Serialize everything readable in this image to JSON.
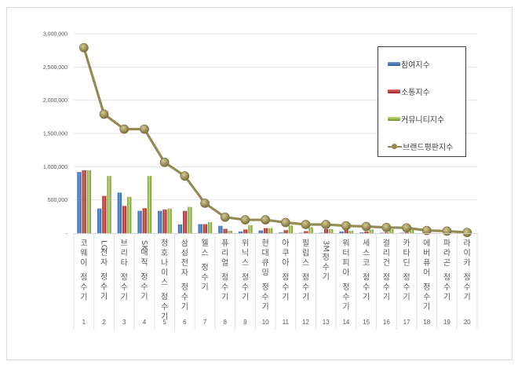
{
  "chart_data": {
    "type": "bar",
    "combo": "bar+line",
    "title": "",
    "xlabel": "",
    "ylabel": "",
    "ylim": [
      0,
      3000000
    ],
    "yticks": [
      "-",
      "500,000",
      "1,000,000",
      "1,500,000",
      "2,000,000",
      "2,500,000",
      "3,000,000"
    ],
    "grid": true,
    "legend_position": "upper-right-inside",
    "ranks": [
      "1",
      "2",
      "3",
      "4",
      "5",
      "6",
      "7",
      "8",
      "9",
      "10",
      "11",
      "12",
      "13",
      "14",
      "15",
      "16",
      "17",
      "18",
      "19",
      "20"
    ],
    "categories": [
      "코웨이 정수기",
      "LG전자 정수기",
      "브리타 정수기",
      "SK매직 정수기",
      "청호나이스 정수기",
      "삼성전자 정수기",
      "웰스 정수기",
      "퓨리얼 정수기",
      "위닉스 정수기",
      "현대큐밍 정수기",
      "아쿠아 정수기",
      "필립스 정수기",
      "3M 정수기",
      "워터피아 정수기",
      "세스코 정수기",
      "걸리건 정수기",
      "카타딘 정수기",
      "에버퓨어 정수기",
      "파라곤 정수기",
      "라이카 정수기"
    ],
    "series": [
      {
        "name": "참여지수",
        "type": "bar",
        "color": "#4f81bd",
        "values": [
          920000,
          370000,
          610000,
          335000,
          335000,
          130000,
          135000,
          110000,
          25000,
          40000,
          10000,
          5000,
          5000,
          25000,
          10000,
          5000,
          5000,
          0,
          0,
          0
        ]
      },
      {
        "name": "소통지수",
        "type": "bar",
        "color": "#c0504d",
        "values": [
          945000,
          560000,
          410000,
          375000,
          355000,
          335000,
          135000,
          65000,
          55000,
          75000,
          45000,
          30000,
          60000,
          45000,
          25000,
          10000,
          10000,
          0,
          0,
          0
        ]
      },
      {
        "name": "커뮤니티지수",
        "type": "bar",
        "color": "#9bbb59",
        "values": [
          945000,
          860000,
          545000,
          860000,
          370000,
          395000,
          165000,
          35000,
          120000,
          75000,
          115000,
          90000,
          60000,
          35000,
          55000,
          60000,
          50000,
          0,
          0,
          0
        ]
      },
      {
        "name": "브랜드평판지수",
        "type": "line",
        "color": "#948a54",
        "values": [
          2790000,
          1790000,
          1565000,
          1565000,
          1065000,
          860000,
          450000,
          240000,
          200000,
          200000,
          160000,
          130000,
          130000,
          110000,
          100000,
          85000,
          80000,
          40000,
          30000,
          10000
        ]
      }
    ]
  }
}
